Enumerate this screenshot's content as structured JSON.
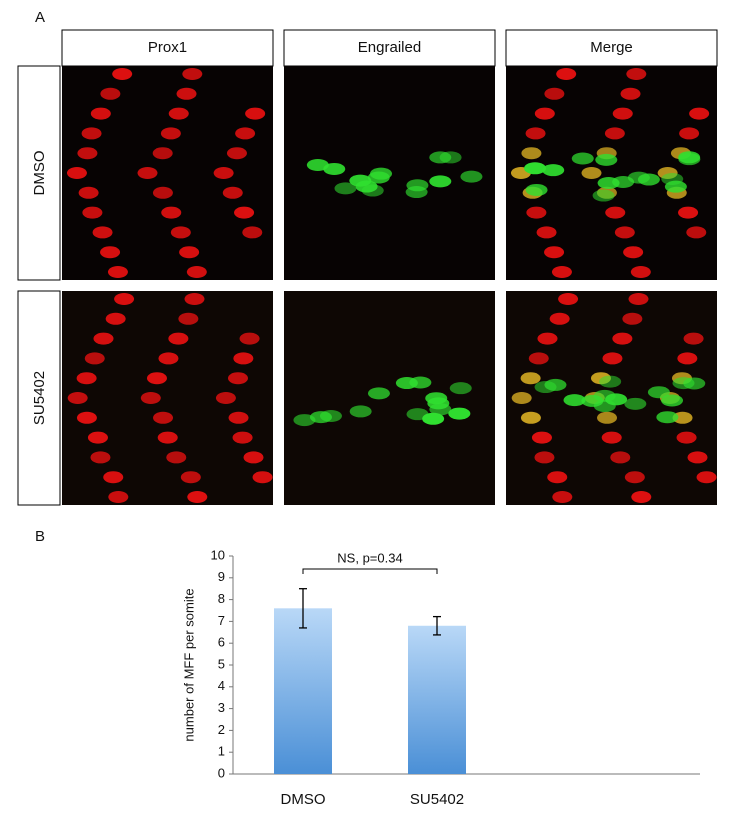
{
  "panel_a": {
    "label": "A",
    "columns": [
      "Prox1",
      "Engrailed",
      "Merge"
    ],
    "rows": [
      "DMSO",
      "SU5402"
    ]
  },
  "chart_data": {
    "type": "bar",
    "panel_label": "B",
    "y_label": "number of MFF per somite",
    "categories": [
      "DMSO",
      "SU5402"
    ],
    "values": [
      7.6,
      6.8
    ],
    "errors": [
      0.9,
      0.42
    ],
    "color": "#4a8fd6",
    "ylim": [
      0,
      10
    ],
    "yticks": [
      0,
      1,
      2,
      3,
      4,
      5,
      6,
      7,
      8,
      9,
      10
    ],
    "annotation": "NS, p=0.34"
  }
}
